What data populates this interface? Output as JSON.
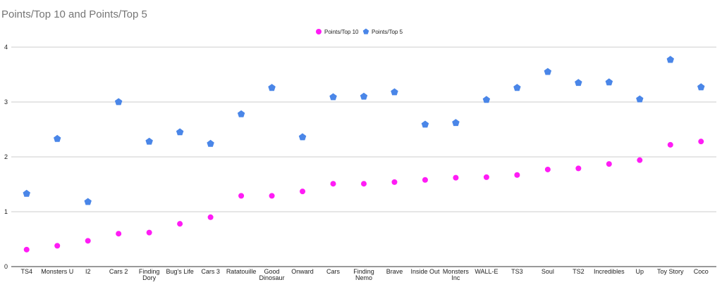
{
  "chart_data": {
    "type": "scatter",
    "title": "Points/Top 10 and Points/Top 5",
    "xlabel": "",
    "ylabel": "",
    "ylim": [
      0,
      4
    ],
    "yticks": [
      "0",
      "1",
      "2",
      "3",
      "4"
    ],
    "grid": true,
    "legend_position": "top-center",
    "categories": [
      "TS4",
      "Monsters U",
      "I2",
      "Cars 2",
      "Finding Dory",
      "Bug's Life",
      "Cars 3",
      "Ratatouille",
      "Good Dinosaur",
      "Onward",
      "Cars",
      "Finding Nemo",
      "Brave",
      "Inside Out",
      "Monsters Inc",
      "WALL-E",
      "TS3",
      "Soul",
      "TS2",
      "Incredibles",
      "Up",
      "Toy Story",
      "Coco"
    ],
    "category_lines": [
      [
        "TS4"
      ],
      [
        "Monsters U"
      ],
      [
        "I2"
      ],
      [
        "Cars 2"
      ],
      [
        "Finding",
        "Dory"
      ],
      [
        "Bug's Life"
      ],
      [
        "Cars 3"
      ],
      [
        "Ratatouille"
      ],
      [
        "Good",
        "Dinosaur"
      ],
      [
        "Onward"
      ],
      [
        "Cars"
      ],
      [
        "Finding",
        "Nemo"
      ],
      [
        "Brave"
      ],
      [
        "Inside Out"
      ],
      [
        "Monsters",
        "Inc"
      ],
      [
        "WALL-E"
      ],
      [
        "TS3"
      ],
      [
        "Soul"
      ],
      [
        "TS2"
      ],
      [
        "Incredibles"
      ],
      [
        "Up"
      ],
      [
        "Toy Story"
      ],
      [
        "Coco"
      ]
    ],
    "series": [
      {
        "name": "Points/Top 10",
        "color": "#ff1cf5",
        "marker": "circle",
        "values": [
          0.31,
          0.38,
          0.47,
          0.6,
          0.62,
          0.78,
          0.9,
          1.29,
          1.29,
          1.37,
          1.51,
          1.51,
          1.54,
          1.58,
          1.62,
          1.63,
          1.67,
          1.77,
          1.79,
          1.87,
          1.94,
          2.22,
          2.28
        ]
      },
      {
        "name": "Points/Top 5",
        "color": "#4a86e8",
        "marker": "pentagon",
        "values": [
          1.33,
          2.33,
          1.18,
          3.0,
          2.28,
          2.45,
          2.24,
          2.78,
          3.26,
          2.36,
          3.09,
          3.1,
          3.18,
          2.59,
          2.62,
          3.04,
          3.26,
          3.55,
          3.35,
          3.36,
          3.05,
          3.77,
          3.27
        ]
      }
    ]
  }
}
